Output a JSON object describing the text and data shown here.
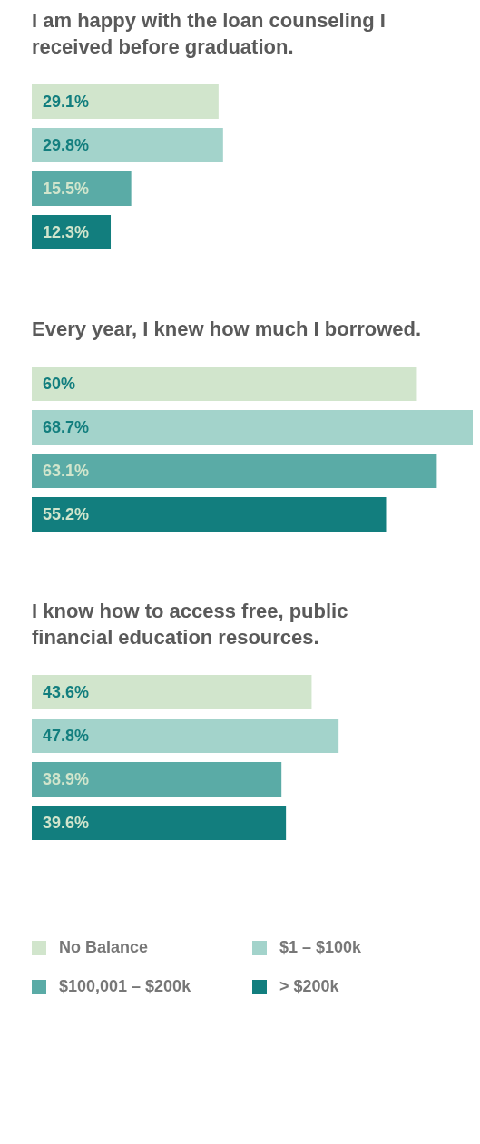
{
  "chart_data": [
    {
      "type": "bar",
      "orientation": "horizontal",
      "title": "I am happy with the loan counseling I received before graduation.",
      "categories": [
        null
      ],
      "legend": false,
      "tick_labels": false,
      "series": [
        {
          "color": "#d1e5cc",
          "values": [
            29.1
          ],
          "value_labels": [
            "29.1%"
          ]
        },
        {
          "color": "#a3d3cb",
          "values": [
            29.8
          ],
          "value_labels": [
            "29.8%"
          ]
        },
        {
          "color": "#5aaba6",
          "values": [
            15.5
          ],
          "value_labels": [
            "15.5%"
          ]
        },
        {
          "color": "#127e7e",
          "values": [
            12.3
          ],
          "value_labels": [
            "12.3%"
          ]
        }
      ]
    },
    {
      "type": "bar",
      "orientation": "horizontal",
      "title": "Every year, I knew how much I borrowed.",
      "categories": [
        null
      ],
      "legend": false,
      "tick_labels": false,
      "series": [
        {
          "color": "#d1e5cc",
          "values": [
            60
          ],
          "value_labels": [
            "60%"
          ]
        },
        {
          "color": "#a3d3cb",
          "values": [
            68.7
          ],
          "value_labels": [
            "68.7%"
          ]
        },
        {
          "color": "#5aaba6",
          "values": [
            63.1
          ],
          "value_labels": [
            "63.1%"
          ]
        },
        {
          "color": "#127e7e",
          "values": [
            55.2
          ],
          "value_labels": [
            "55.2%"
          ]
        }
      ]
    },
    {
      "type": "bar",
      "orientation": "horizontal",
      "title": "I know how to access free, public financial education resources.",
      "categories": [
        null
      ],
      "legend": "bottom",
      "tick_labels": false,
      "series": [
        {
          "name": "No Balance",
          "color": "#d1e5cc",
          "values": [
            43.6
          ],
          "value_labels": [
            "43.6%"
          ]
        },
        {
          "name": "$1 – $100k",
          "color": "#a3d3cb",
          "values": [
            47.8
          ],
          "value_labels": [
            "47.8%"
          ]
        },
        {
          "name": "$100,001 – $200k",
          "color": "#5aaba6",
          "values": [
            38.9
          ],
          "value_labels": [
            "38.9%"
          ]
        },
        {
          "name": "> $200k",
          "color": "#127e7e",
          "values": [
            39.6
          ],
          "value_labels": [
            "39.6%"
          ]
        }
      ]
    }
  ]
}
